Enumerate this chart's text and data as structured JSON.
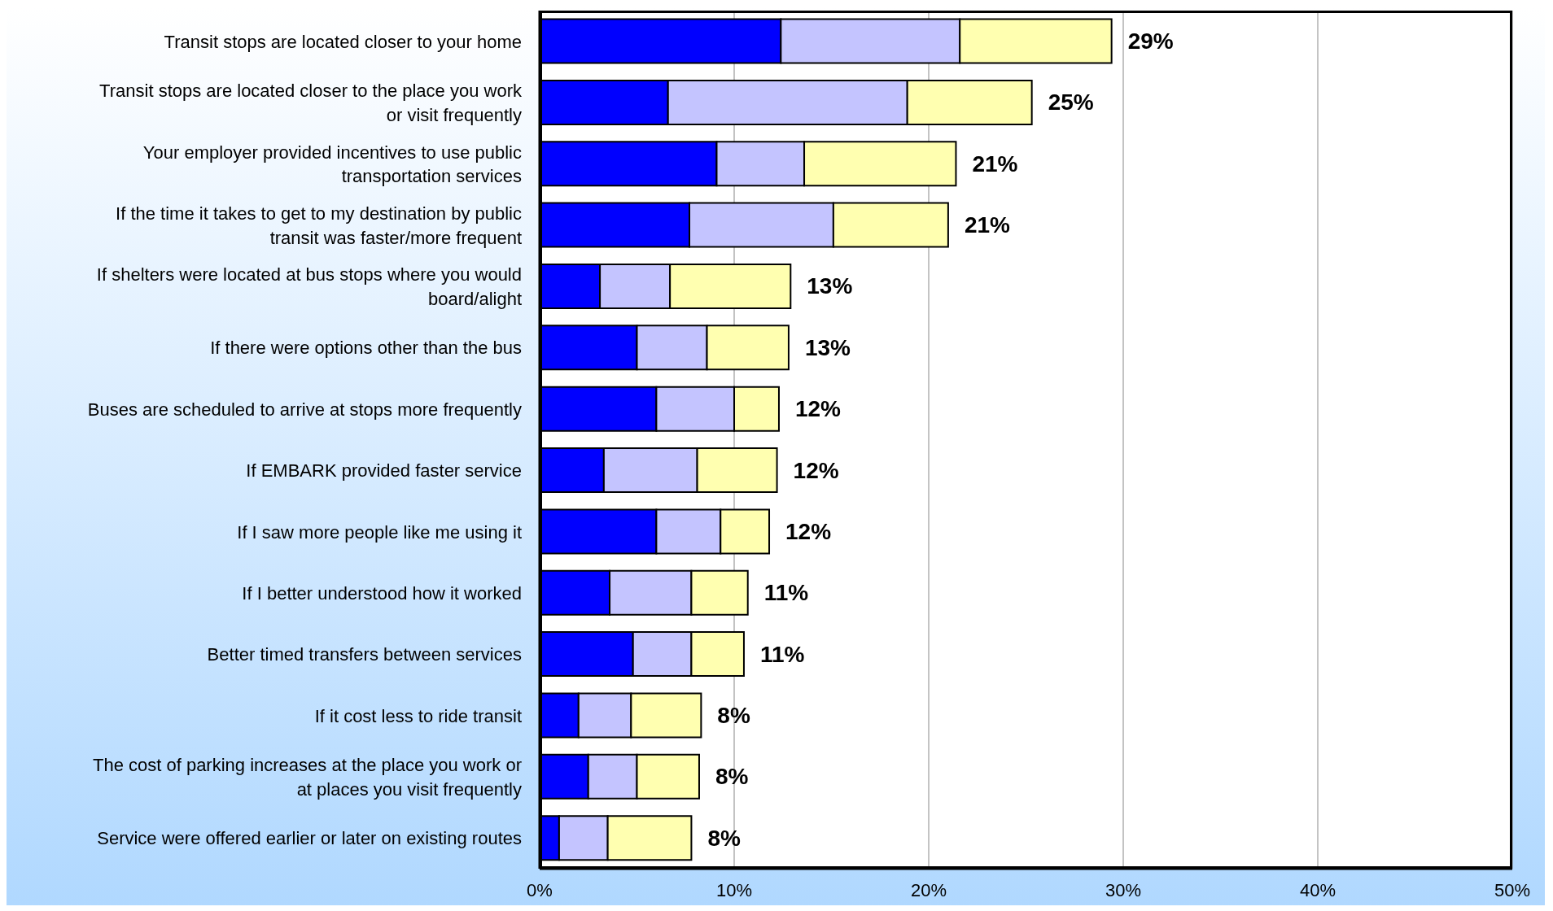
{
  "chart_data": {
    "type": "bar",
    "orientation": "horizontal",
    "stacked": true,
    "grid": "x",
    "categories": [
      "Transit stops are located closer to your home",
      "Transit stops are located closer to the place you work or visit frequently",
      "Your employer provided incentives to use public transportation services",
      "If the time it takes to get to my destination by public transit was faster/more frequent",
      "If shelters were located at bus stops where you would board/alight",
      "If there were options other than the bus",
      "Buses are scheduled to arrive at stops more frequently",
      "If EMBARK provided faster service",
      "If I saw more people like me using it",
      "If I better understood how it worked",
      "Better timed transfers between services",
      "If it cost less to ride transit",
      "The cost of parking increases at the place you work or at places you visit frequently",
      "Service were offered earlier or later on existing routes"
    ],
    "series": [
      {
        "color": "#0000ff",
        "values": [
          12.4,
          6.6,
          9.1,
          7.7,
          3.1,
          5.0,
          6.0,
          3.3,
          6.0,
          3.6,
          4.8,
          2.0,
          2.5,
          1.0
        ]
      },
      {
        "color": "#c4c4ff",
        "values": [
          9.2,
          12.3,
          4.5,
          7.4,
          3.6,
          3.6,
          4.0,
          4.8,
          3.3,
          4.2,
          3.0,
          2.7,
          2.5,
          2.5
        ]
      },
      {
        "color": "#ffffb0",
        "values": [
          7.8,
          6.4,
          7.8,
          5.9,
          6.2,
          4.2,
          2.3,
          4.1,
          2.5,
          2.9,
          2.7,
          3.6,
          3.2,
          4.3
        ]
      }
    ],
    "totals": [
      "29%",
      "25%",
      "21%",
      "21%",
      "13%",
      "13%",
      "12%",
      "12%",
      "12%",
      "11%",
      "11%",
      "8%",
      "8%",
      "8%"
    ],
    "xlim": [
      0,
      50
    ],
    "xticks": [
      {
        "value": 0,
        "label": "0%"
      },
      {
        "value": 10,
        "label": "10%"
      },
      {
        "value": 20,
        "label": "20%"
      },
      {
        "value": 30,
        "label": "30%"
      },
      {
        "value": 40,
        "label": "40%"
      },
      {
        "value": 50,
        "label": "50%"
      }
    ]
  }
}
